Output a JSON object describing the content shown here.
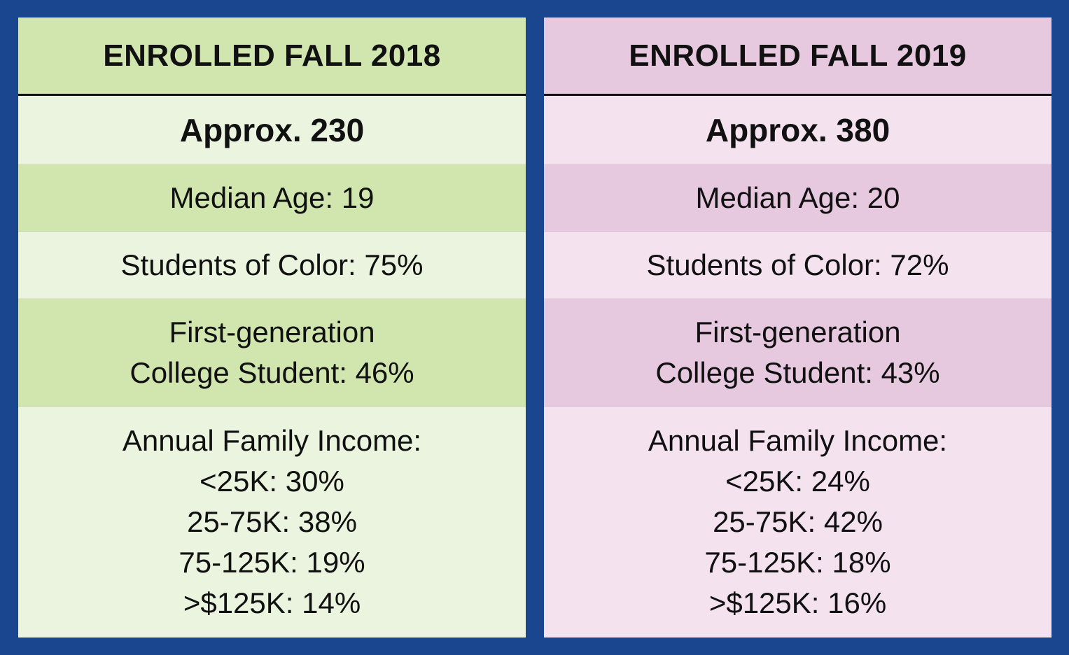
{
  "colors": {
    "frame": "#1a4690",
    "green_dark": "#d1e5ae",
    "green_light": "#ebf4df",
    "pink_dark": "#e6c8df",
    "pink_light": "#f4e3ef"
  },
  "columns": [
    {
      "title": "ENROLLED FALL 2018",
      "approx": "Approx. 230",
      "median_age": "Median Age: 19",
      "students_of_color": "Students of Color: 75%",
      "first_gen_line1": "First-generation",
      "first_gen_line2": "College Student: 46%",
      "income_heading": "Annual Family Income:",
      "income": [
        "<25K: 30%",
        "25-75K: 38%",
        "75-125K: 19%",
        ">$125K: 14%"
      ]
    },
    {
      "title": "ENROLLED FALL 2019",
      "approx": "Approx. 380",
      "median_age": "Median Age: 20",
      "students_of_color": "Students of Color: 72%",
      "first_gen_line1": "First-generation",
      "first_gen_line2": "College Student: 43%",
      "income_heading": "Annual Family Income:",
      "income": [
        "<25K: 24%",
        "25-75K: 42%",
        "75-125K: 18%",
        ">$125K: 16%"
      ]
    }
  ]
}
